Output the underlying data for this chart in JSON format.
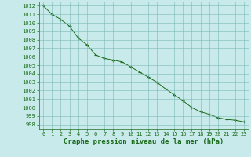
{
  "x": [
    0,
    1,
    2,
    3,
    4,
    5,
    6,
    7,
    8,
    9,
    10,
    11,
    12,
    13,
    14,
    15,
    16,
    17,
    18,
    19,
    20,
    21,
    22,
    23
  ],
  "y": [
    1012.0,
    1011.0,
    1010.4,
    1009.6,
    1008.2,
    1007.4,
    1006.2,
    1005.8,
    1005.6,
    1005.4,
    1004.8,
    1004.2,
    1003.6,
    1003.0,
    1002.2,
    1001.5,
    1000.8,
    1000.0,
    999.5,
    999.2,
    998.8,
    998.6,
    998.5,
    998.3
  ],
  "ylim": [
    997.5,
    1012.5
  ],
  "xlim": [
    -0.5,
    23.5
  ],
  "yticks": [
    998,
    999,
    1000,
    1001,
    1002,
    1003,
    1004,
    1005,
    1006,
    1007,
    1008,
    1009,
    1010,
    1011,
    1012
  ],
  "xticks": [
    0,
    1,
    2,
    3,
    4,
    5,
    6,
    7,
    8,
    9,
    10,
    11,
    12,
    13,
    14,
    15,
    16,
    17,
    18,
    19,
    20,
    21,
    22,
    23
  ],
  "xlabel": "Graphe pression niveau de la mer (hPa)",
  "line_color": "#1a6b1a",
  "marker": "+",
  "bg_color": "#c8eaea",
  "grid_color": "#7ab8b8",
  "tick_label_color": "#1a6b1a",
  "xlabel_color": "#1a6b1a",
  "tick_fontsize": 5.0,
  "xlabel_fontsize": 6.5
}
